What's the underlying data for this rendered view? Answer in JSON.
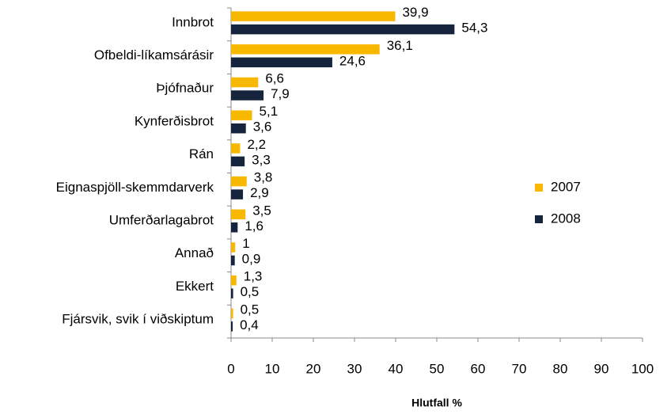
{
  "chart_data": {
    "type": "barh",
    "categories": [
      "Innbrot",
      "Ofbeldi-líkamsárásir",
      "Þjófnaður",
      "Kynferðisbrot",
      "Rán",
      "Eignaspjöll-skemmdarverk",
      "Umferðarlagabrot",
      "Annað",
      "Ekkert",
      "Fjársvik, svik í viðskiptum"
    ],
    "series": [
      {
        "name": "2007",
        "color": "#f9b800",
        "values": [
          39.9,
          36.1,
          6.6,
          5.1,
          2.2,
          3.8,
          3.5,
          1,
          1.3,
          0.5
        ],
        "value_labels": [
          "39,9",
          "36,1",
          "6,6",
          "5,1",
          "2,2",
          "3,8",
          "3,5",
          "1",
          "1,3",
          "0,5"
        ]
      },
      {
        "name": "2008",
        "color": "#17243d",
        "values": [
          54.3,
          24.6,
          7.9,
          3.6,
          3.3,
          2.9,
          1.6,
          0.9,
          0.5,
          0.4
        ],
        "value_labels": [
          "54,3",
          "24,6",
          "7,9",
          "3,6",
          "3,3",
          "2,9",
          "1,6",
          "0,9",
          "0,5",
          "0,4"
        ]
      }
    ],
    "xlabel": "Hlutfall %",
    "xlim": [
      0,
      100
    ],
    "xticks": [
      0,
      10,
      20,
      30,
      40,
      50,
      60,
      70,
      80,
      90,
      100
    ],
    "legend": "right"
  }
}
